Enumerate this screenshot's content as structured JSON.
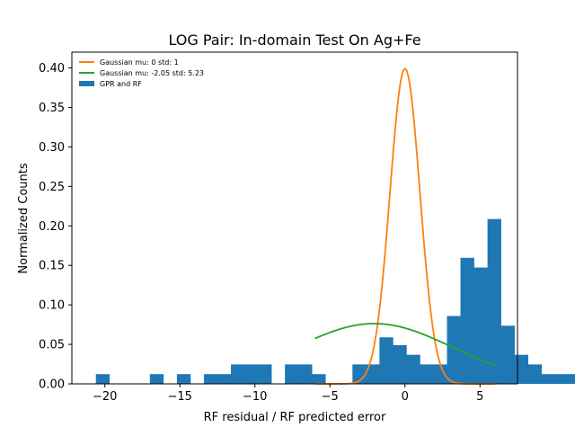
{
  "chart_data": {
    "type": "bar",
    "title": "LOG Pair: In-domain Test On Ag+Fe",
    "xlabel": "RF residual / RF predicted error",
    "ylabel": "Normalized Counts",
    "xlim": [
      -22.2,
      7.5
    ],
    "ylim": [
      0,
      0.42
    ],
    "xticks": [
      -20,
      -15,
      -10,
      -5,
      0,
      5
    ],
    "xtick_labels": [
      "−20",
      "−15",
      "−10",
      "−5",
      "0",
      "5"
    ],
    "yticks": [
      0.0,
      0.05,
      0.1,
      0.15,
      0.2,
      0.25,
      0.3,
      0.35,
      0.4
    ],
    "ytick_labels": [
      "0.00",
      "0.05",
      "0.10",
      "0.15",
      "0.20",
      "0.25",
      "0.30",
      "0.35",
      "0.40"
    ],
    "grid": false,
    "legend_position": "top-left",
    "histogram": {
      "name": "GPR and RF",
      "color": "#1f77b4",
      "bin_start": -20.6,
      "bin_width": 0.9,
      "values": [
        0.0123,
        0,
        0,
        0,
        0.0123,
        0,
        0.0123,
        0,
        0.0123,
        0.0123,
        0.0246,
        0.0246,
        0.0246,
        0,
        0.0246,
        0.0246,
        0.0123,
        0,
        0,
        0.0246,
        0.0246,
        0.0589,
        0.0491,
        0.0368,
        0.0246,
        0.0246,
        0.0859,
        0.1596,
        0.1473,
        0.2087,
        0.0736,
        0.0368,
        0.0246,
        0.0123,
        0.0123,
        0.0123
      ]
    },
    "series": [
      {
        "name": "Gaussian mu: 0 std: 1",
        "color": "#ff7f0e",
        "mu": 0,
        "std": 1,
        "x_range": [
          -6.0,
          6.0
        ]
      },
      {
        "name": "Gaussian mu: -2.05 std: 5.23",
        "color": "#2ca02c",
        "mu": -2.05,
        "std": 5.23,
        "x_range": [
          -6.0,
          6.0
        ]
      }
    ]
  }
}
